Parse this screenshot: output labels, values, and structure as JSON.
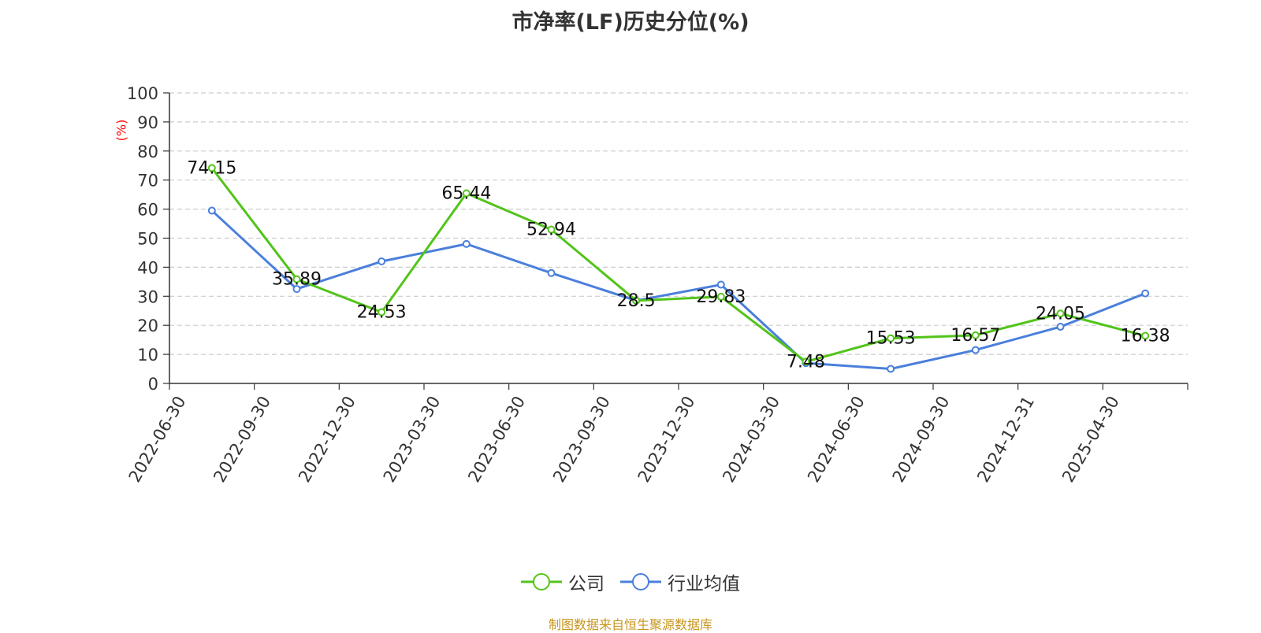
{
  "chart_data": {
    "type": "line",
    "title": "市净率(LF)历史分位(%)",
    "ylabel": "(%)",
    "ylim": [
      0,
      100
    ],
    "yticks": [
      0,
      10,
      20,
      30,
      40,
      50,
      60,
      70,
      80,
      90,
      100
    ],
    "categories": [
      "2022-06-30",
      "2022-09-30",
      "2022-12-30",
      "2023-03-30",
      "2023-06-30",
      "2023-09-30",
      "2023-12-30",
      "2024-03-30",
      "2024-06-30",
      "2024-09-30",
      "2024-12-31",
      "2025-04-30"
    ],
    "series": [
      {
        "name": "公司",
        "color": "#52c41a",
        "values": [
          74.15,
          35.89,
          24.53,
          65.44,
          52.94,
          28.5,
          29.83,
          7.48,
          15.53,
          16.57,
          24.05,
          16.38
        ],
        "show_labels": true
      },
      {
        "name": "行业均值",
        "color": "#4a7fdc",
        "values": [
          59.5,
          32.5,
          42.0,
          48.0,
          38.0,
          28.5,
          34.0,
          7.0,
          5.0,
          11.5,
          19.5,
          31.0
        ],
        "show_labels": false
      }
    ],
    "grid": true,
    "legend_position": "bottom-center"
  },
  "legend": {
    "company": "公司",
    "industry": "行业均值"
  },
  "source": "制图数据来自恒生聚源数据库"
}
